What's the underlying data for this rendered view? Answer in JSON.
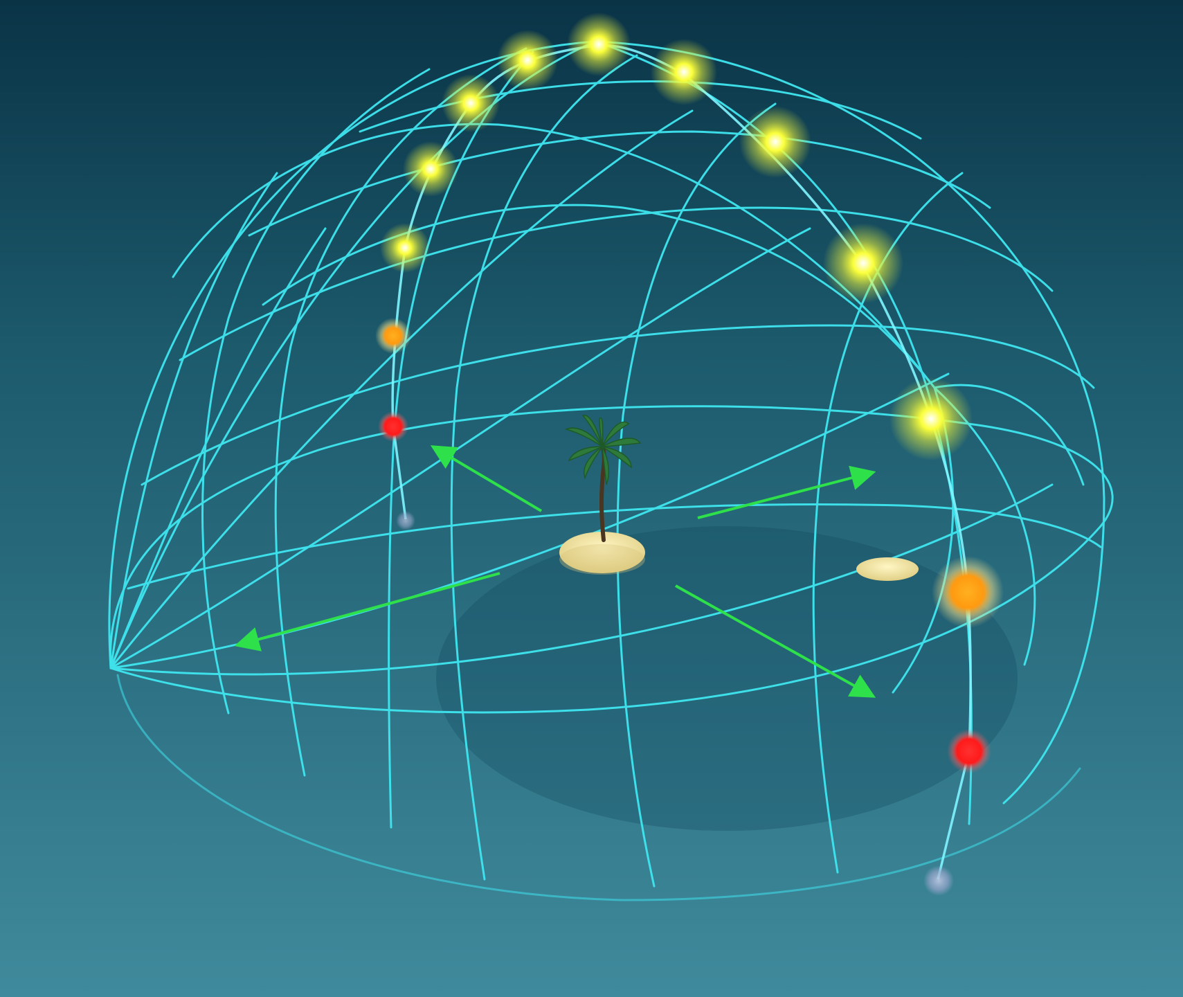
{
  "scene": {
    "kind": "celestial-sphere-illustration",
    "text_labels": [],
    "colors": {
      "sky_top": "#0a3346",
      "sea_far": "#1c5a6c",
      "sea_near": "#3f8a9c",
      "grid_line": "#3fe6f0",
      "arrow": "#2ee04a",
      "sun_noon": "#fbff3a",
      "sun_low": "#ff9a10",
      "sun_horizon": "#ff2020",
      "sun_below": "#aab4d8",
      "sand": "#f1e6a6"
    },
    "sun_paths": [
      {
        "id": "winter-path",
        "stages": [
          "below-horizon",
          "horizon",
          "low",
          "day",
          "day",
          "day",
          "day",
          "noon"
        ]
      },
      {
        "id": "summer-path",
        "stages": [
          "below-horizon",
          "horizon",
          "low",
          "day",
          "day",
          "day",
          "noon"
        ]
      }
    ],
    "icons": [
      "palm-tree-icon",
      "sand-island-icon",
      "direction-arrow-icon"
    ]
  }
}
